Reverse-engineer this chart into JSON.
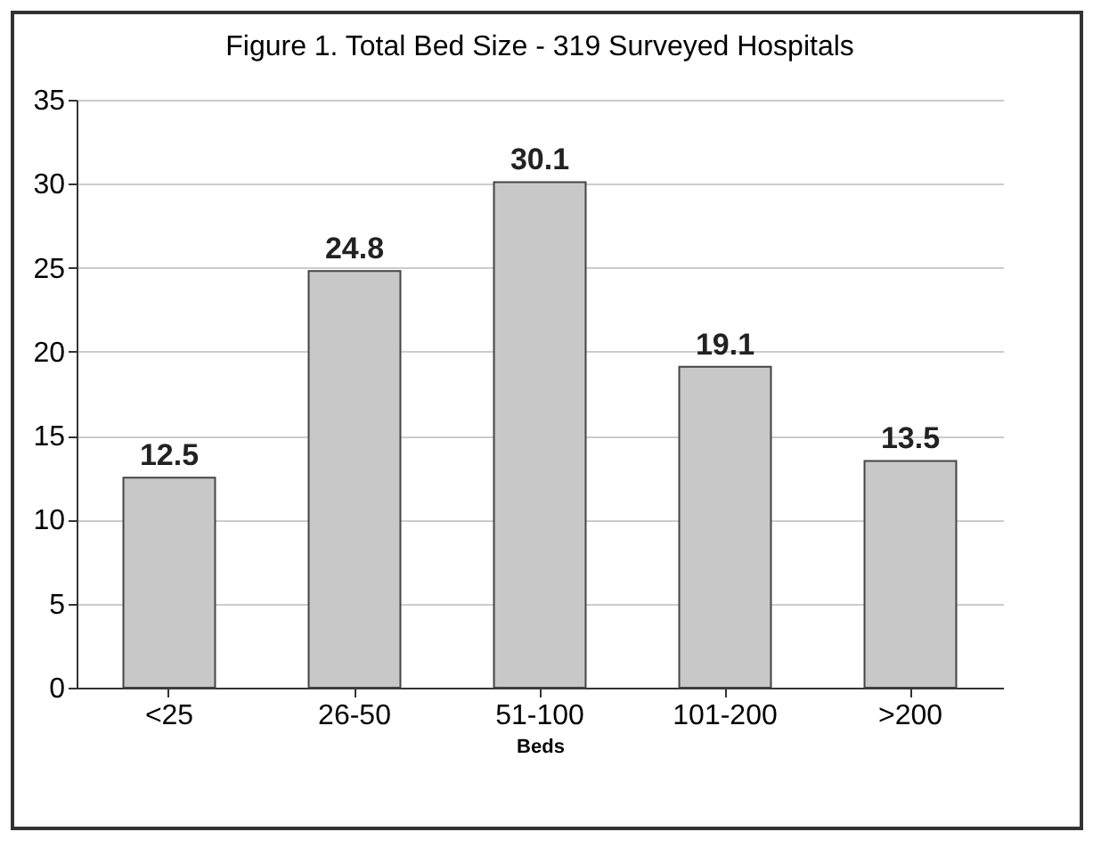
{
  "chart_data": {
    "type": "bar",
    "title": "Figure 1. Total Bed Size - 319 Surveyed Hospitals",
    "xlabel": "Beds",
    "categories": [
      "<25",
      "26-50",
      "51-100",
      "101-200",
      ">200"
    ],
    "values": [
      12.5,
      24.8,
      30.1,
      19.1,
      13.5
    ],
    "color": "#c8c8c8",
    "ylim": [
      0,
      35
    ],
    "yticks": [
      0,
      5,
      10,
      15,
      20,
      25,
      30,
      35
    ],
    "grid": "y",
    "data_labels": true
  }
}
